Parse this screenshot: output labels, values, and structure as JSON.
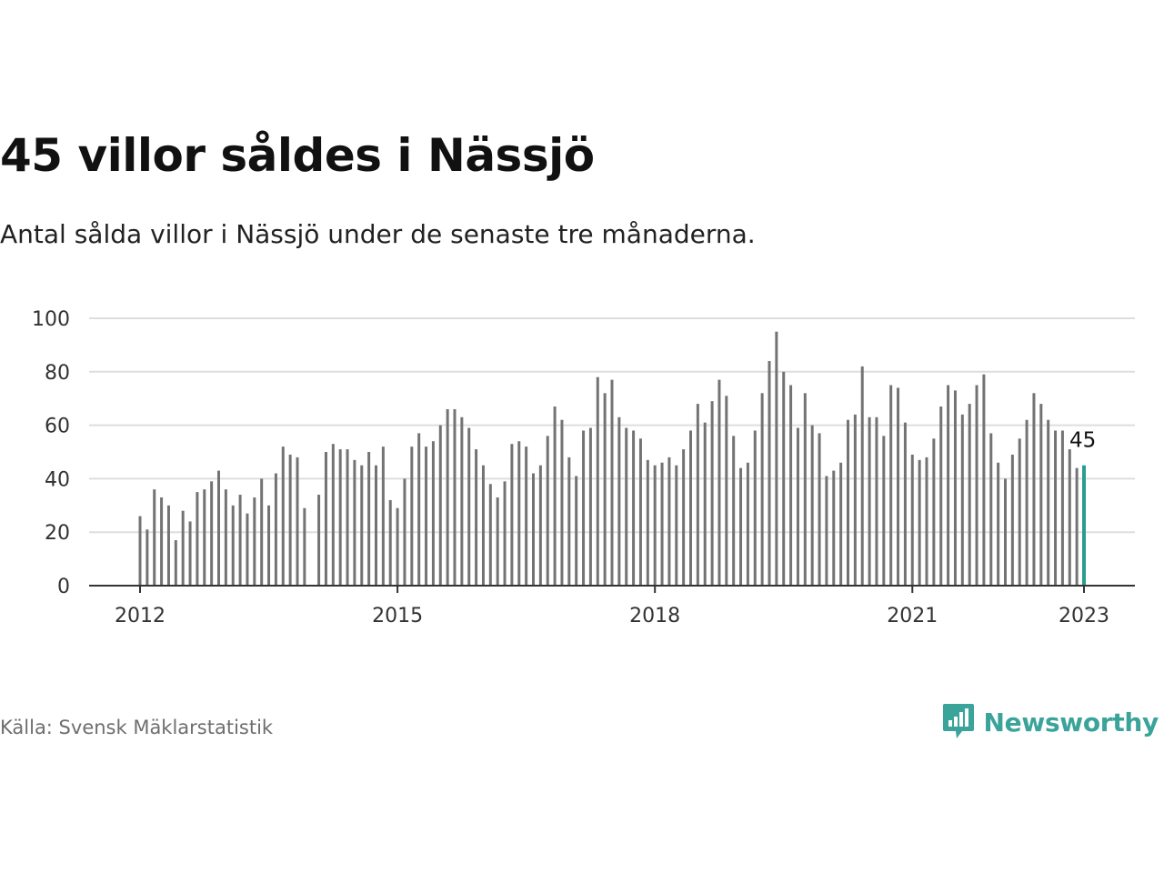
{
  "chart_data": {
    "type": "bar",
    "title": "45 villor såldes i Nässjö",
    "subtitle": "Antal sålda villor i Nässjö under de senaste tre månaderna.",
    "xlabel": "",
    "ylabel": "",
    "x_start": "2012-01",
    "x_end": "2023-01",
    "x_ticks": [
      "2012",
      "2015",
      "2018",
      "2021",
      "2023"
    ],
    "y_ticks": [
      0,
      20,
      40,
      60,
      80,
      100
    ],
    "ylim": [
      0,
      100
    ],
    "grid": true,
    "values": [
      26,
      21,
      36,
      33,
      30,
      17,
      28,
      24,
      35,
      36,
      39,
      43,
      36,
      30,
      34,
      27,
      33,
      40,
      30,
      42,
      52,
      49,
      48,
      29,
      null,
      34,
      50,
      53,
      51,
      51,
      47,
      45,
      50,
      45,
      52,
      32,
      29,
      40,
      52,
      57,
      52,
      54,
      60,
      66,
      66,
      63,
      59,
      51,
      45,
      38,
      33,
      39,
      53,
      54,
      52,
      42,
      45,
      56,
      67,
      62,
      48,
      41,
      58,
      59,
      78,
      72,
      77,
      63,
      59,
      58,
      55,
      47,
      45,
      46,
      48,
      45,
      51,
      58,
      68,
      61,
      69,
      77,
      71,
      56,
      44,
      46,
      58,
      72,
      84,
      95,
      80,
      75,
      59,
      72,
      60,
      57,
      41,
      43,
      46,
      62,
      64,
      82,
      63,
      63,
      56,
      75,
      74,
      61,
      49,
      47,
      48,
      55,
      67,
      75,
      73,
      64,
      68,
      75,
      79,
      57,
      46,
      40,
      49,
      55,
      62,
      72,
      68,
      62,
      58,
      58,
      51,
      44,
      45
    ],
    "highlight_label": "45",
    "bar_color": "#737373",
    "highlight_color": "#2a9d8f"
  },
  "footer": {
    "source": "Källa: Svensk Mäklarstatistik",
    "brand": "Newsworthy"
  },
  "brand_icon": "newsworthy-logo-icon",
  "brand_color": "#3aa39a"
}
